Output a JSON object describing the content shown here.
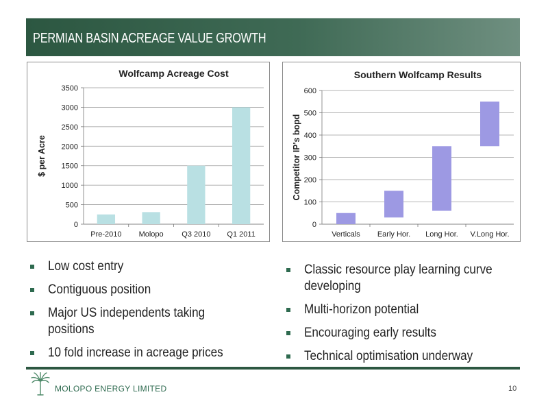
{
  "header": {
    "title": "PERMIAN BASIN ACREAGE VALUE GROWTH"
  },
  "chart_data": [
    {
      "type": "bar",
      "title": "Wolfcamp  Acreage  Cost",
      "ylabel": "$ per Acre",
      "xlabel": "",
      "categories": [
        "Pre-2010",
        "Molopo",
        "Q3 2010",
        "Q1 2011"
      ],
      "values": [
        250,
        310,
        1500,
        3000
      ],
      "ylim": [
        0,
        3500
      ],
      "yticks": [
        0,
        500,
        1000,
        1500,
        2000,
        2500,
        3000,
        3500
      ],
      "grid": true,
      "color": "#b9e0e3"
    },
    {
      "type": "bar",
      "subtype": "floating-range",
      "title": "Southern  Wolfcamp  Results",
      "ylabel": "Competitor IP's bopd",
      "xlabel": "",
      "categories": [
        "Verticals",
        "Early Hor.",
        "Long Hor.",
        "V.Long Hor."
      ],
      "ranges": [
        [
          0,
          50
        ],
        [
          30,
          150
        ],
        [
          60,
          350
        ],
        [
          350,
          550
        ]
      ],
      "ylim": [
        0,
        600
      ],
      "yticks": [
        0,
        100,
        200,
        300,
        400,
        500,
        600
      ],
      "grid": true,
      "color": "#9d99e3"
    }
  ],
  "bullets_left": [
    "Low cost entry",
    "Contiguous position",
    "Major US independents taking positions",
    "10 fold increase in acreage prices"
  ],
  "bullets_right": [
    "Classic resource play learning curve developing",
    "Multi-horizon potential",
    "Encouraging early results",
    "Technical optimisation underway"
  ],
  "footer": {
    "company": "MOLOPO ENERGY LIMITED",
    "page": "10",
    "logo_icon": "palm-tree-icon"
  }
}
